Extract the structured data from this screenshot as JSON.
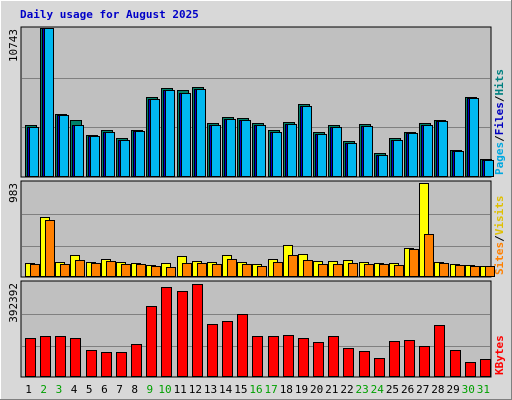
{
  "chart_data": {
    "type": "bar",
    "title": "Daily usage for August 2025",
    "days": [
      "1",
      "2",
      "3",
      "4",
      "5",
      "6",
      "7",
      "8",
      "9",
      "10",
      "11",
      "12",
      "13",
      "14",
      "15",
      "16",
      "17",
      "18",
      "19",
      "20",
      "21",
      "22",
      "23",
      "24",
      "25",
      "26",
      "27",
      "28",
      "29",
      "30",
      "31"
    ],
    "weekend_days": [
      "2",
      "3",
      "9",
      "10",
      "16",
      "17",
      "23",
      "24",
      "30",
      "31"
    ],
    "panels": [
      {
        "name": "traffic",
        "ymax_label": "10743",
        "ymax": 10743,
        "side_labels": [
          {
            "text": "Hits",
            "color": "#008080"
          },
          {
            "text": "/",
            "color": "#000000"
          },
          {
            "text": "Files",
            "color": "#0000c0"
          },
          {
            "text": "/",
            "color": "#000000"
          },
          {
            "text": "Pages",
            "color": "#00a8e0"
          }
        ],
        "series": [
          {
            "name": "Hits",
            "color": "#00806a",
            "values": [
              3760,
              10743,
              4520,
              4140,
              3050,
              3410,
              2800,
              3420,
              5790,
              6430,
              6240,
              6520,
              3890,
              4300,
              4230,
              3880,
              3380,
              3950,
              5250,
              3240,
              3740,
              2590,
              3810,
              1710,
              2800,
              3220,
              3860,
              4130,
              1980,
              5800,
              1290
            ]
          },
          {
            "name": "Files",
            "color": "#0000c8",
            "values": [
              3600,
              10743,
              4440,
              3780,
              2960,
              3210,
              2650,
              3290,
              5630,
              6300,
              6070,
              6340,
              3760,
              4190,
              4110,
              3780,
              3260,
              3840,
              5130,
              3110,
              3610,
              2470,
              3700,
              1600,
              2700,
              3140,
              3760,
              4030,
              1900,
              5690,
              1210
            ]
          },
          {
            "name": "Pages",
            "color": "#00b8f0",
            "values": [
              3600,
              10743,
              4440,
              3780,
              2960,
              3210,
              2650,
              3290,
              5630,
              6300,
              6070,
              6340,
              3760,
              4190,
              4110,
              3780,
              3260,
              3840,
              5130,
              3110,
              3610,
              2470,
              3700,
              1600,
              2700,
              3140,
              3760,
              4030,
              1900,
              5690,
              1210
            ]
          }
        ]
      },
      {
        "name": "visits",
        "ymax_label": "983",
        "ymax": 983,
        "side_labels": [
          {
            "text": "Visits",
            "color": "#e0c000"
          },
          {
            "text": "/",
            "color": "#000000"
          },
          {
            "text": "Sites",
            "color": "#ff8000"
          }
        ],
        "series": [
          {
            "name": "Visits",
            "color": "#ffff00",
            "values": [
              143,
              627,
              157,
              225,
              162,
              193,
              161,
              144,
              121,
              143,
              219,
              167,
              152,
              235,
              158,
              135,
              186,
              337,
              245,
              172,
              164,
              180,
              159,
              143,
              146,
              301,
              983,
              162,
              134,
              121,
              118
            ]
          },
          {
            "name": "Sites",
            "color": "#ff8000",
            "values": [
              132,
              595,
              132,
              175,
              149,
              166,
              140,
              136,
              118,
              102,
              147,
              146,
              139,
              188,
              137,
              112,
              156,
              230,
              182,
              139,
              135,
              144,
              137,
              131,
              125,
              288,
              446,
              149,
              125,
              117,
              111
            ]
          }
        ]
      },
      {
        "name": "kbytes",
        "ymax_label": "392392",
        "ymax": 392392,
        "side_labels": [
          {
            "text": "KBytes",
            "color": "#ff0000"
          }
        ],
        "series": [
          {
            "name": "KBytes",
            "color": "#ff0000",
            "values": [
              163000,
              170000,
              170000,
              164000,
              113000,
              104000,
              104000,
              137000,
              298000,
              375000,
              358000,
              387000,
              222000,
              233000,
              262000,
              173000,
              170000,
              174000,
              162000,
              148000,
              171000,
              123000,
              110000,
              81000,
              149000,
              153000,
              130000,
              215000,
              113000,
              61000,
              76000
            ]
          }
        ]
      }
    ]
  }
}
